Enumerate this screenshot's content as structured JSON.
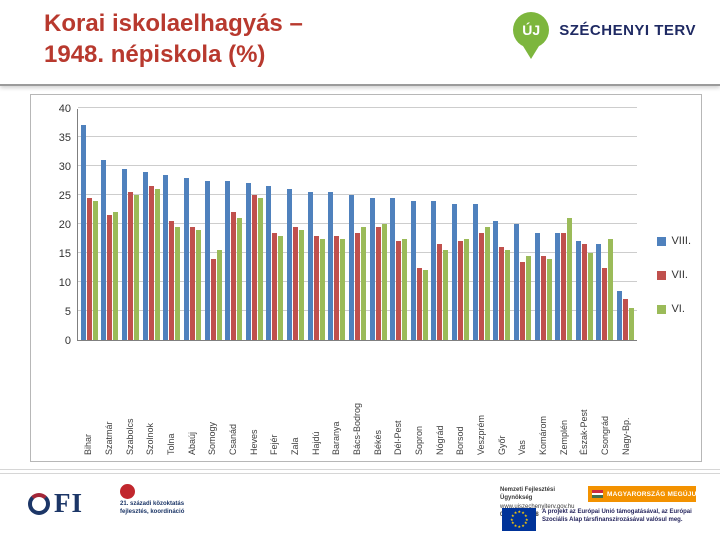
{
  "slide": {
    "title_line1": "Korai iskolaelhagyás –",
    "title_line2": "1948. népiskola (%)"
  },
  "logo": {
    "pin_text": "ÚJ",
    "brand_text": "SZÉCHENYI TERV",
    "pin_color": "#7db63d",
    "brand_color": "#1f2a63"
  },
  "colors": {
    "title": "#b8392e",
    "megujul_orange": "#f39200",
    "eu_blue": "#003399"
  },
  "chart_data": {
    "type": "bar",
    "title": "",
    "xlabel": "",
    "ylabel": "",
    "ylim": [
      0,
      40
    ],
    "ytick_step": 5,
    "yticks": [
      0,
      5,
      10,
      15,
      20,
      25,
      30,
      35,
      40
    ],
    "grid": true,
    "legend_position": "right",
    "categories": [
      "Bihar",
      "Szatmár",
      "Szabolcs",
      "Szolnok",
      "Tolna",
      "Abaúj",
      "Somogy",
      "Csanád",
      "Heves",
      "Fejér",
      "Zala",
      "Hajdú",
      "Baranya",
      "Bács-Bodrog",
      "Békés",
      "Dél-Pest",
      "Sopron",
      "Nógrád",
      "Borsod",
      "Veszprém",
      "Győr",
      "Vas",
      "Komárom",
      "Zemplén",
      "Észak-Pest",
      "Csongrád",
      "Nagy-Bp."
    ],
    "series": [
      {
        "name": "VIII.",
        "color": "#4F81BD",
        "values": [
          37,
          31,
          29.5,
          29,
          28.5,
          28,
          27.5,
          27.5,
          27,
          26.5,
          26,
          25.5,
          25.5,
          25,
          24.5,
          24.5,
          24,
          24,
          23.5,
          23.5,
          20.5,
          20,
          18.5,
          18.5,
          17,
          16.5,
          8.5
        ]
      },
      {
        "name": "VII.",
        "color": "#C0504D",
        "values": [
          24.5,
          21.5,
          25.5,
          26.5,
          20.5,
          19.5,
          14,
          22,
          25,
          18.5,
          19.5,
          18,
          18,
          18.5,
          19.5,
          17,
          12.5,
          16.5,
          17,
          18.5,
          16,
          13.5,
          14.5,
          18.5,
          16.5,
          12.5,
          7
        ]
      },
      {
        "name": "VI.",
        "color": "#9BBB59",
        "values": [
          24,
          22,
          25,
          26,
          19.5,
          19,
          15.5,
          21,
          24.5,
          18,
          19,
          17.5,
          17.5,
          19.5,
          20,
          17.5,
          12,
          15.5,
          17.5,
          19.5,
          15.5,
          14.5,
          14,
          21,
          15,
          17.5,
          5.5
        ]
      }
    ]
  },
  "footer": {
    "ofi_text": "FI",
    "k21_line1": "21. századi közoktatás",
    "k21_line2": "fejlesztés, koordináció",
    "nfu_line1": "Nemzeti Fejlesztési Ügynökség",
    "nfu_line2": "www.ujszechenyiterv.gov.hu",
    "nfu_line3": "06 40 638-638",
    "megujul": "MAGYARORSZÁG MEGÚJUL",
    "eu_text": "A projekt az Európai Unió támogatásával, az Európai Szociális Alap társfinanszírozásával valósul meg."
  }
}
